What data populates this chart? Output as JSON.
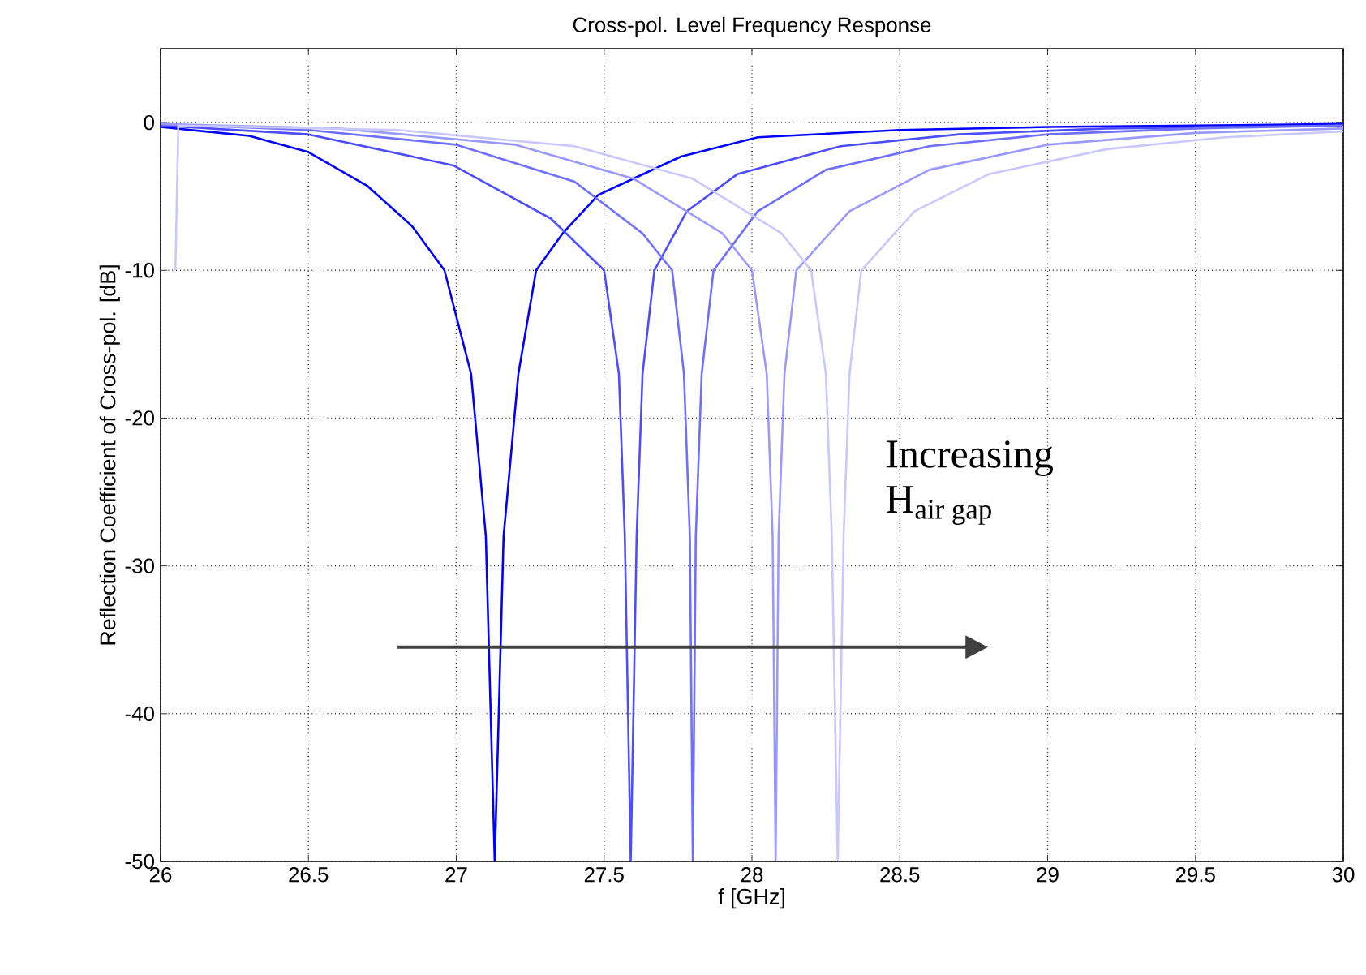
{
  "chart_data": {
    "type": "line",
    "title": "Cross-pol. Level Frequency Response",
    "xlabel": "f [GHz]",
    "ylabel": "Reflection Coefficient of Cross-pol. [dB]",
    "xlim": [
      26,
      30
    ],
    "ylim": [
      -50,
      5
    ],
    "xticks": [
      26,
      26.5,
      27,
      27.5,
      28,
      28.5,
      29,
      29.5,
      30
    ],
    "yticks": [
      -50,
      -40,
      -30,
      -20,
      -10,
      0
    ],
    "grid": true,
    "legend": false,
    "marker": "none",
    "line_style": "solid",
    "annotations": [
      "Increasing",
      "\\text{H}_{\\text{air gap}}"
    ],
    "series": [
      {
        "color": "#0000ff",
        "x": [
          26.0,
          26.3,
          26.5,
          26.7,
          26.85,
          26.96,
          27.05,
          27.1,
          27.13,
          27.16,
          27.21,
          27.27,
          27.36,
          27.48,
          27.76,
          28.02,
          28.5,
          29.0,
          30.0
        ],
        "values": [
          -0.3,
          -0.9,
          -2.0,
          -4.3,
          -7,
          -10,
          -17,
          -28,
          -50,
          -28,
          -17,
          -10,
          -7.5,
          -4.9,
          -2.3,
          -1.0,
          -0.5,
          -0.3,
          -0.1
        ]
      },
      {
        "color": "#4d4dff",
        "x": [
          26.0,
          26.5,
          26.99,
          27.32,
          27.5,
          27.55,
          27.57,
          27.59,
          27.61,
          27.63,
          27.67,
          27.78,
          27.95,
          28.3,
          28.7,
          29.2,
          30.0
        ],
        "values": [
          -0.2,
          -0.8,
          -2.9,
          -6.5,
          -10,
          -17,
          -28,
          -50,
          -28,
          -17,
          -10,
          -6,
          -3.5,
          -1.6,
          -0.8,
          -0.4,
          -0.2
        ]
      },
      {
        "color": "#6e6eff",
        "x": [
          26.0,
          26.5,
          27.0,
          27.4,
          27.63,
          27.73,
          27.77,
          27.79,
          27.8,
          27.81,
          27.83,
          27.87,
          28.02,
          28.25,
          28.6,
          29.0,
          29.5,
          30.0
        ],
        "values": [
          -0.1,
          -0.5,
          -1.5,
          -4,
          -7.5,
          -10,
          -17,
          -28,
          -50,
          -28,
          -17,
          -10,
          -6,
          -3.2,
          -1.6,
          -0.8,
          -0.4,
          -0.2
        ]
      },
      {
        "color": "#9999ff",
        "x": [
          26.0,
          26.6,
          27.2,
          27.6,
          27.9,
          28.0,
          28.05,
          28.07,
          28.08,
          28.09,
          28.11,
          28.15,
          28.33,
          28.6,
          29.0,
          29.5,
          30.0
        ],
        "values": [
          -0.1,
          -0.4,
          -1.5,
          -3.8,
          -7.5,
          -10,
          -17,
          -28,
          -50,
          -28,
          -17,
          -10,
          -6,
          -3.2,
          -1.5,
          -0.7,
          -0.4
        ]
      },
      {
        "color": "#c8c8ff",
        "x": [
          26.05,
          26.06,
          26.8,
          27.4,
          27.8,
          28.1,
          28.2,
          28.25,
          28.27,
          28.29,
          28.31,
          28.33,
          28.37,
          28.55,
          28.8,
          29.2,
          29.6,
          30.0
        ],
        "values": [
          -10,
          -0.2,
          -0.5,
          -1.6,
          -3.8,
          -7.5,
          -10,
          -17,
          -28,
          -50,
          -28,
          -17,
          -10,
          -6,
          -3.5,
          -1.8,
          -1.0,
          -0.6
        ]
      }
    ]
  }
}
